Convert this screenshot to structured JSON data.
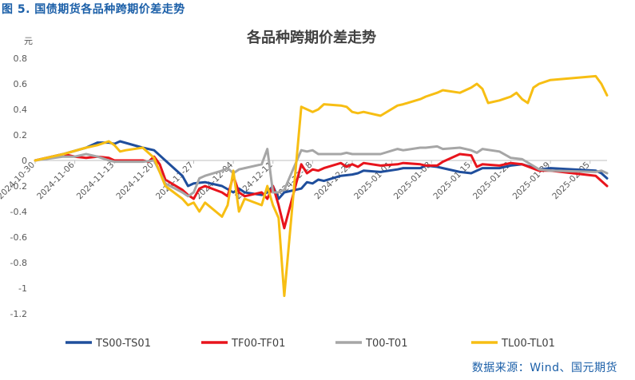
{
  "figure_label": "图 5.  国债期货各品种跨期价差走势",
  "source": "数据来源：Wind、国元期货",
  "chart_data": {
    "type": "line",
    "title": "各品种跨期价差走势",
    "ylabel": "元",
    "xlabel": "",
    "ylim": [
      -1.2,
      0.8
    ],
    "yticks": [
      0.8,
      0.6,
      0.4,
      0.2,
      0,
      -0.2,
      -0.4,
      -0.6,
      -0.8,
      -1,
      -1.2
    ],
    "ytick_labels": [
      "0.8",
      "0.6",
      "0.4",
      "0.2",
      "0",
      "-0.2",
      "-0.4",
      "-0.6",
      "-0.8",
      "-1",
      "-1.2"
    ],
    "xtick_labels": [
      "2024-10-30",
      "2024-11-06",
      "2024-11-13",
      "2024-11-20",
      "2024-11-27",
      "2024-12-04",
      "2024-12-11",
      "2024-12-18",
      "2024-12-25",
      "2025-01-01",
      "2025-01-08",
      "2025-01-15",
      "2025-01-22",
      "2025-01-29",
      "2025-02-05"
    ],
    "legend_position": "bottom",
    "grid": false,
    "series": [
      {
        "name": "TS00-TS01",
        "color": "#1f4e9c",
        "points": [
          [
            "2024-10-30",
            0
          ],
          [
            "2024-11-04",
            0.05
          ],
          [
            "2024-11-08",
            0.1
          ],
          [
            "2024-11-10",
            0.14
          ],
          [
            "2024-11-12",
            0.14
          ],
          [
            "2024-11-13",
            0.13
          ],
          [
            "2024-11-14",
            0.15
          ],
          [
            "2024-11-18",
            0.1
          ],
          [
            "2024-11-20",
            0.08
          ],
          [
            "2024-11-22",
            0.0
          ],
          [
            "2024-11-25",
            -0.12
          ],
          [
            "2024-11-26",
            -0.2
          ],
          [
            "2024-11-27",
            -0.18
          ],
          [
            "2024-11-29",
            -0.17
          ],
          [
            "2024-12-02",
            -0.2
          ],
          [
            "2024-12-04",
            -0.25
          ],
          [
            "2024-12-05",
            -0.22
          ],
          [
            "2024-12-06",
            -0.25
          ],
          [
            "2024-12-09",
            -0.27
          ],
          [
            "2024-12-10",
            -0.25
          ],
          [
            "2024-12-11",
            -0.2
          ],
          [
            "2024-12-12",
            -0.3
          ],
          [
            "2024-12-13",
            -0.25
          ],
          [
            "2024-12-16",
            -0.22
          ],
          [
            "2024-12-17",
            -0.17
          ],
          [
            "2024-12-18",
            -0.18
          ],
          [
            "2024-12-19",
            -0.15
          ],
          [
            "2024-12-20",
            -0.16
          ],
          [
            "2024-12-23",
            -0.12
          ],
          [
            "2024-12-25",
            -0.11
          ],
          [
            "2024-12-26",
            -0.1
          ],
          [
            "2024-12-27",
            -0.08
          ],
          [
            "2024-12-30",
            -0.09
          ],
          [
            "2025-01-02",
            -0.07
          ],
          [
            "2025-01-03",
            -0.06
          ],
          [
            "2025-01-06",
            -0.06
          ],
          [
            "2025-01-07",
            -0.04
          ],
          [
            "2025-01-09",
            -0.05
          ],
          [
            "2025-01-10",
            -0.06
          ],
          [
            "2025-01-13",
            -0.09
          ],
          [
            "2025-01-15",
            -0.1
          ],
          [
            "2025-01-16",
            -0.08
          ],
          [
            "2025-01-17",
            -0.06
          ],
          [
            "2025-01-20",
            -0.06
          ],
          [
            "2025-01-22",
            -0.04
          ],
          [
            "2025-01-24",
            -0.03
          ],
          [
            "2025-01-27",
            -0.07
          ],
          [
            "2025-01-29",
            -0.06
          ],
          [
            "2025-02-06",
            -0.08
          ],
          [
            "2025-02-07",
            -0.1
          ],
          [
            "2025-02-08",
            -0.14
          ]
        ]
      },
      {
        "name": "TF00-TF01",
        "color": "#e8141c",
        "points": [
          [
            "2024-10-30",
            0
          ],
          [
            "2024-11-04",
            0.05
          ],
          [
            "2024-11-06",
            0.03
          ],
          [
            "2024-11-08",
            0.02
          ],
          [
            "2024-11-10",
            0.03
          ],
          [
            "2024-11-12",
            0.02
          ],
          [
            "2024-11-13",
            0.0
          ],
          [
            "2024-11-14",
            0.0
          ],
          [
            "2024-11-18",
            0.0
          ],
          [
            "2024-11-19",
            -0.01
          ],
          [
            "2024-11-20",
            0.03
          ],
          [
            "2024-11-21",
            -0.03
          ],
          [
            "2024-11-22",
            -0.15
          ],
          [
            "2024-11-25",
            -0.23
          ],
          [
            "2024-11-26",
            -0.27
          ],
          [
            "2024-11-27",
            -0.3
          ],
          [
            "2024-11-28",
            -0.22
          ],
          [
            "2024-11-29",
            -0.2
          ],
          [
            "2024-12-02",
            -0.25
          ],
          [
            "2024-12-03",
            -0.28
          ],
          [
            "2024-12-04",
            -0.12
          ],
          [
            "2024-12-05",
            -0.25
          ],
          [
            "2024-12-06",
            -0.28
          ],
          [
            "2024-12-09",
            -0.25
          ],
          [
            "2024-12-10",
            -0.3
          ],
          [
            "2024-12-11",
            -0.2
          ],
          [
            "2024-12-12",
            -0.35
          ],
          [
            "2024-12-13",
            -0.53
          ],
          [
            "2024-12-16",
            -0.03
          ],
          [
            "2024-12-17",
            -0.1
          ],
          [
            "2024-12-18",
            -0.07
          ],
          [
            "2024-12-19",
            -0.08
          ],
          [
            "2024-12-20",
            -0.06
          ],
          [
            "2024-12-23",
            -0.02
          ],
          [
            "2024-12-24",
            -0.05
          ],
          [
            "2024-12-25",
            -0.03
          ],
          [
            "2024-12-26",
            -0.05
          ],
          [
            "2024-12-27",
            -0.02
          ],
          [
            "2024-12-30",
            -0.04
          ],
          [
            "2025-01-02",
            -0.03
          ],
          [
            "2025-01-03",
            -0.02
          ],
          [
            "2025-01-06",
            -0.03
          ],
          [
            "2025-01-07",
            -0.04
          ],
          [
            "2025-01-09",
            -0.04
          ],
          [
            "2025-01-10",
            -0.01
          ],
          [
            "2025-01-13",
            0.05
          ],
          [
            "2025-01-15",
            0.04
          ],
          [
            "2025-01-16",
            -0.05
          ],
          [
            "2025-01-17",
            -0.03
          ],
          [
            "2025-01-20",
            -0.04
          ],
          [
            "2025-01-22",
            -0.02
          ],
          [
            "2025-01-24",
            -0.03
          ],
          [
            "2025-01-27",
            -0.08
          ],
          [
            "2025-01-29",
            -0.08
          ],
          [
            "2025-02-06",
            -0.12
          ],
          [
            "2025-02-07",
            -0.16
          ],
          [
            "2025-02-08",
            -0.2
          ]
        ]
      },
      {
        "name": "T00-T01",
        "color": "#a6a6a6",
        "points": [
          [
            "2024-10-30",
            0
          ],
          [
            "2024-11-04",
            0.03
          ],
          [
            "2024-11-06",
            0.03
          ],
          [
            "2024-11-08",
            0.05
          ],
          [
            "2024-11-10",
            0.03
          ],
          [
            "2024-11-12",
            0.0
          ],
          [
            "2024-11-13",
            -0.01
          ],
          [
            "2024-11-14",
            -0.01
          ],
          [
            "2024-11-18",
            -0.01
          ],
          [
            "2024-11-20",
            0.0
          ],
          [
            "2024-11-22",
            -0.18
          ],
          [
            "2024-11-25",
            -0.25
          ],
          [
            "2024-11-26",
            -0.28
          ],
          [
            "2024-11-27",
            -0.25
          ],
          [
            "2024-11-28",
            -0.14
          ],
          [
            "2024-11-29",
            -0.12
          ],
          [
            "2024-12-02",
            -0.08
          ],
          [
            "2024-12-03",
            -0.06
          ],
          [
            "2024-12-04",
            -0.1
          ],
          [
            "2024-12-05",
            -0.07
          ],
          [
            "2024-12-06",
            -0.06
          ],
          [
            "2024-12-09",
            -0.03
          ],
          [
            "2024-12-10",
            0.09
          ],
          [
            "2024-12-11",
            -0.25
          ],
          [
            "2024-12-12",
            -0.25
          ],
          [
            "2024-12-13",
            -0.23
          ],
          [
            "2024-12-16",
            0.08
          ],
          [
            "2024-12-17",
            0.07
          ],
          [
            "2024-12-18",
            0.08
          ],
          [
            "2024-12-19",
            0.05
          ],
          [
            "2024-12-20",
            0.05
          ],
          [
            "2024-12-23",
            0.05
          ],
          [
            "2024-12-24",
            0.06
          ],
          [
            "2024-12-25",
            0.05
          ],
          [
            "2024-12-26",
            0.05
          ],
          [
            "2024-12-27",
            0.05
          ],
          [
            "2024-12-30",
            0.05
          ],
          [
            "2025-01-02",
            0.09
          ],
          [
            "2025-01-03",
            0.08
          ],
          [
            "2025-01-06",
            0.1
          ],
          [
            "2025-01-07",
            0.1
          ],
          [
            "2025-01-09",
            0.11
          ],
          [
            "2025-01-10",
            0.09
          ],
          [
            "2025-01-13",
            0.1
          ],
          [
            "2025-01-15",
            0.08
          ],
          [
            "2025-01-16",
            0.06
          ],
          [
            "2025-01-17",
            0.09
          ],
          [
            "2025-01-20",
            0.07
          ],
          [
            "2025-01-22",
            0.02
          ],
          [
            "2025-01-24",
            0.01
          ],
          [
            "2025-01-27",
            -0.07
          ],
          [
            "2025-01-29",
            -0.08
          ],
          [
            "2025-02-06",
            -0.09
          ],
          [
            "2025-02-07",
            -0.08
          ],
          [
            "2025-02-08",
            -0.1
          ]
        ]
      },
      {
        "name": "TL00-TL01",
        "color": "#f7be13",
        "points": [
          [
            "2024-10-30",
            0
          ],
          [
            "2024-11-04",
            0.05
          ],
          [
            "2024-11-08",
            0.1
          ],
          [
            "2024-11-10",
            0.12
          ],
          [
            "2024-11-12",
            0.15
          ],
          [
            "2024-11-13",
            0.12
          ],
          [
            "2024-11-14",
            0.07
          ],
          [
            "2024-11-15",
            0.08
          ],
          [
            "2024-11-18",
            0.1
          ],
          [
            "2024-11-20",
            0.02
          ],
          [
            "2024-11-22",
            -0.2
          ],
          [
            "2024-11-25",
            -0.3
          ],
          [
            "2024-11-26",
            -0.35
          ],
          [
            "2024-11-27",
            -0.33
          ],
          [
            "2024-11-28",
            -0.4
          ],
          [
            "2024-11-29",
            -0.33
          ],
          [
            "2024-12-02",
            -0.44
          ],
          [
            "2024-12-03",
            -0.35
          ],
          [
            "2024-12-04",
            -0.08
          ],
          [
            "2024-12-05",
            -0.4
          ],
          [
            "2024-12-06",
            -0.3
          ],
          [
            "2024-12-09",
            -0.35
          ],
          [
            "2024-12-10",
            -0.2
          ],
          [
            "2024-12-11",
            -0.35
          ],
          [
            "2024-12-12",
            -0.45
          ],
          [
            "2024-12-13",
            -1.06
          ],
          [
            "2024-12-16",
            0.42
          ],
          [
            "2024-12-17",
            0.4
          ],
          [
            "2024-12-18",
            0.38
          ],
          [
            "2024-12-19",
            0.4
          ],
          [
            "2024-12-20",
            0.44
          ],
          [
            "2024-12-23",
            0.43
          ],
          [
            "2024-12-24",
            0.42
          ],
          [
            "2024-12-25",
            0.38
          ],
          [
            "2024-12-26",
            0.37
          ],
          [
            "2024-12-27",
            0.38
          ],
          [
            "2024-12-30",
            0.35
          ],
          [
            "2025-01-02",
            0.43
          ],
          [
            "2025-01-03",
            0.44
          ],
          [
            "2025-01-06",
            0.48
          ],
          [
            "2025-01-07",
            0.5
          ],
          [
            "2025-01-09",
            0.53
          ],
          [
            "2025-01-10",
            0.55
          ],
          [
            "2025-01-13",
            0.53
          ],
          [
            "2025-01-15",
            0.57
          ],
          [
            "2025-01-16",
            0.6
          ],
          [
            "2025-01-17",
            0.56
          ],
          [
            "2025-01-18",
            0.45
          ],
          [
            "2025-01-20",
            0.47
          ],
          [
            "2025-01-22",
            0.5
          ],
          [
            "2025-01-23",
            0.53
          ],
          [
            "2025-01-24",
            0.48
          ],
          [
            "2025-01-25",
            0.45
          ],
          [
            "2025-01-26",
            0.57
          ],
          [
            "2025-01-27",
            0.6
          ],
          [
            "2025-01-29",
            0.63
          ],
          [
            "2025-02-06",
            0.66
          ],
          [
            "2025-02-07",
            0.6
          ],
          [
            "2025-02-08",
            0.51
          ]
        ]
      }
    ]
  }
}
